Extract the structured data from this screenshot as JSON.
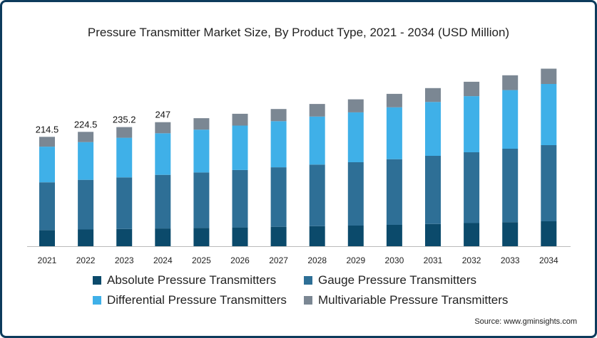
{
  "chart_data": {
    "type": "bar",
    "stacked": true,
    "title": "Pressure Transmitter Market Size, By Product Type, 2021 - 2034 (USD Million)",
    "categories": [
      "2021",
      "2022",
      "2023",
      "2024",
      "2025",
      "2026",
      "2027",
      "2028",
      "2029",
      "2030",
      "2031",
      "2032",
      "2033",
      "2034"
    ],
    "series": [
      {
        "name": "Absolute Pressure Transmitters",
        "color": "#0b4a6b",
        "values": [
          22.7,
          23.5,
          24.2,
          24.9,
          25.6,
          26.4,
          27.3,
          28.2,
          29.0,
          30.0,
          31.2,
          32.5,
          33.8,
          35.0
        ]
      },
      {
        "name": "Gauge Pressure Transmitters",
        "color": "#2e6f96",
        "values": [
          67.1,
          69.8,
          72.5,
          75.4,
          78.0,
          80.7,
          83.6,
          86.5,
          89.0,
          92.3,
          95.8,
          99.5,
          103.2,
          107.0
        ]
      },
      {
        "name": "Differential Pressure Transmitters",
        "color": "#3fb0e8",
        "values": [
          50.1,
          53.0,
          55.7,
          58.4,
          60.2,
          62.4,
          64.8,
          67.5,
          70.1,
          72.9,
          75.7,
          78.9,
          82.4,
          86.0
        ]
      },
      {
        "name": "Multivariable Pressure Transmitters",
        "color": "#7b8793",
        "values": [
          13.8,
          14.4,
          15.0,
          15.6,
          16.1,
          16.6,
          17.1,
          17.7,
          18.3,
          18.9,
          19.5,
          20.2,
          20.8,
          21.5
        ]
      }
    ],
    "totals_labels": [
      "214.5",
      "224.5",
      "235.2",
      "247"
    ],
    "ylim": [
      0,
      260
    ],
    "legend_position": "bottom",
    "grid": false
  },
  "source": "Source: www.gminsights.com"
}
